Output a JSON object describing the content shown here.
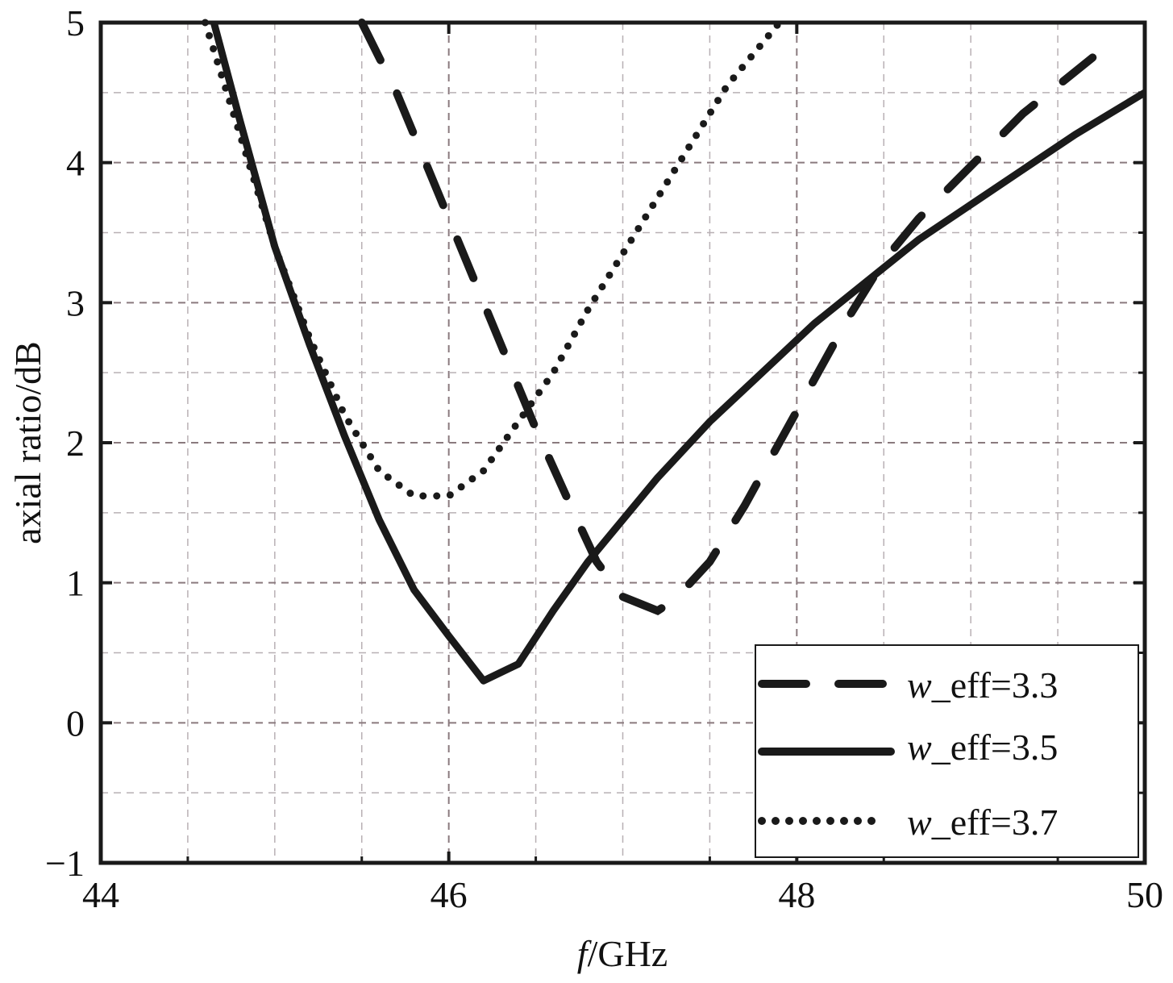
{
  "chart_data": {
    "type": "line",
    "xlabel_italic": "f",
    "xlabel_rest": "/GHz",
    "ylabel": "axial ratio/dB",
    "xlim": [
      44,
      50
    ],
    "ylim": [
      -1,
      5
    ],
    "xticks": [
      44,
      46,
      48,
      50
    ],
    "yticks": [
      -1,
      0,
      1,
      2,
      3,
      4,
      5
    ],
    "xtick_labels": [
      "44",
      "46",
      "48",
      "50"
    ],
    "ytick_labels": [
      "−1",
      "0",
      "1",
      "2",
      "3",
      "4",
      "5"
    ],
    "grid": true,
    "legend_position": "bottom-right",
    "line_color": "#1a1a1a",
    "series": [
      {
        "name_italic": "w",
        "name_rest": "_eff=3.3",
        "style": "dashed",
        "x": [
          45.5,
          45.7,
          45.9,
          46.1,
          46.3,
          46.5,
          46.7,
          46.85,
          47.0,
          47.1,
          47.2,
          47.3,
          47.5,
          47.7,
          47.9,
          48.1,
          48.3,
          48.5,
          48.7,
          48.9,
          49.1,
          49.3,
          49.5,
          49.7
        ],
        "y": [
          5.0,
          4.5,
          3.9,
          3.3,
          2.7,
          2.1,
          1.55,
          1.15,
          0.9,
          0.85,
          0.8,
          0.88,
          1.15,
          1.55,
          2.0,
          2.45,
          2.9,
          3.3,
          3.6,
          3.85,
          4.1,
          4.35,
          4.55,
          4.75
        ]
      },
      {
        "name_italic": "w",
        "name_rest": "_eff=3.5",
        "style": "solid",
        "x": [
          44.65,
          44.8,
          45.0,
          45.2,
          45.4,
          45.6,
          45.8,
          46.0,
          46.2,
          46.4,
          46.6,
          46.8,
          47.0,
          47.2,
          47.5,
          47.8,
          48.1,
          48.4,
          48.7,
          49.0,
          49.3,
          49.6,
          50.0
        ],
        "y": [
          5.0,
          4.3,
          3.4,
          2.7,
          2.05,
          1.45,
          0.95,
          0.62,
          0.3,
          0.42,
          0.8,
          1.15,
          1.45,
          1.75,
          2.15,
          2.5,
          2.85,
          3.15,
          3.45,
          3.7,
          3.95,
          4.2,
          4.5
        ]
      },
      {
        "name_italic": "w",
        "name_rest": "_eff=3.7",
        "style": "dotted",
        "x": [
          44.6,
          44.8,
          45.0,
          45.2,
          45.4,
          45.6,
          45.8,
          46.0,
          46.2,
          46.4,
          46.6,
          46.8,
          47.0,
          47.2,
          47.4,
          47.6,
          47.8,
          47.9
        ],
        "y": [
          5.0,
          4.2,
          3.4,
          2.75,
          2.2,
          1.8,
          1.62,
          1.62,
          1.8,
          2.15,
          2.5,
          2.95,
          3.35,
          3.75,
          4.15,
          4.55,
          4.85,
          5.0
        ]
      }
    ]
  }
}
